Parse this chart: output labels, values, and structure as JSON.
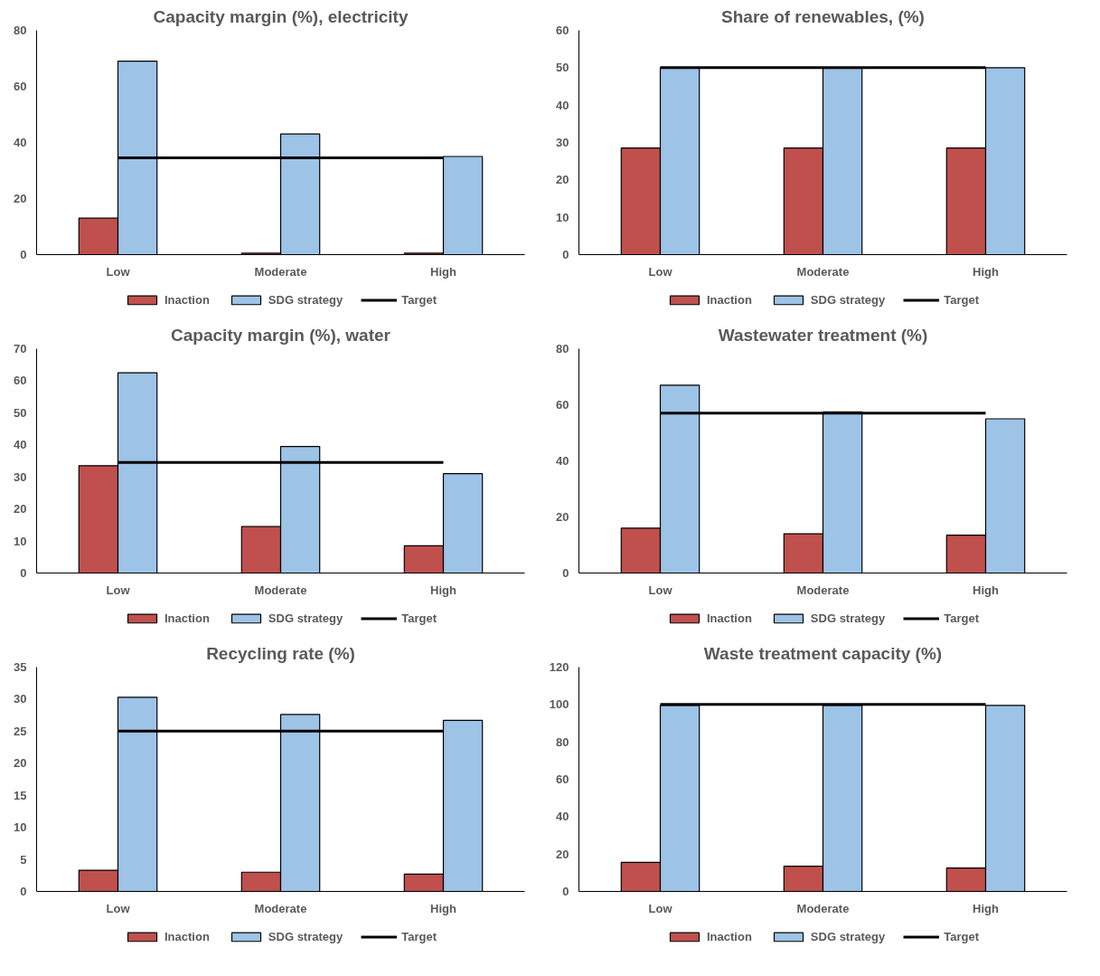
{
  "chart_data": [
    {
      "type": "bar",
      "title": "Capacity margin (%), electricity",
      "categories": [
        "Low",
        "Moderate",
        "High"
      ],
      "ylim": [
        0,
        80
      ],
      "yticks": [
        0,
        20,
        40,
        60,
        80
      ],
      "grid": false,
      "legend": "bottom",
      "series": [
        {
          "name": "Inaction",
          "color": "#c0504d",
          "values": [
            13,
            0.5,
            0.5
          ]
        },
        {
          "name": "SDG strategy",
          "color": "#9dc3e6",
          "values": [
            69,
            43,
            35
          ]
        },
        {
          "name": "Target",
          "type": "line",
          "color": "#000000",
          "values": [
            34.5,
            34.5,
            34.5
          ]
        }
      ]
    },
    {
      "type": "bar",
      "title": "Share of renewables, (%)",
      "categories": [
        "Low",
        "Moderate",
        "High"
      ],
      "ylim": [
        0,
        60
      ],
      "yticks": [
        0,
        10,
        20,
        30,
        40,
        50,
        60
      ],
      "grid": false,
      "legend": "bottom",
      "series": [
        {
          "name": "Inaction",
          "color": "#c0504d",
          "values": [
            28.5,
            28.5,
            28.5
          ]
        },
        {
          "name": "SDG strategy",
          "color": "#9dc3e6",
          "values": [
            50,
            50,
            50
          ]
        },
        {
          "name": "Target",
          "type": "line",
          "color": "#000000",
          "values": [
            50,
            50,
            50
          ]
        }
      ]
    },
    {
      "type": "bar",
      "title": "Capacity margin (%), water",
      "categories": [
        "Low",
        "Moderate",
        "High"
      ],
      "ylim": [
        0,
        70
      ],
      "yticks": [
        0,
        10,
        20,
        30,
        40,
        50,
        60,
        70
      ],
      "grid": false,
      "legend": "bottom",
      "series": [
        {
          "name": "Inaction",
          "color": "#c0504d",
          "values": [
            33.5,
            14.5,
            8.5
          ]
        },
        {
          "name": "SDG strategy",
          "color": "#9dc3e6",
          "values": [
            62.5,
            39.5,
            31
          ]
        },
        {
          "name": "Target",
          "type": "line",
          "color": "#000000",
          "values": [
            34.5,
            34.5,
            34.5
          ]
        }
      ]
    },
    {
      "type": "bar",
      "title": "Wastewater treatment (%)",
      "categories": [
        "Low",
        "Moderate",
        "High"
      ],
      "ylim": [
        0,
        80
      ],
      "yticks": [
        0,
        20,
        40,
        60,
        80
      ],
      "grid": false,
      "legend": "bottom",
      "series": [
        {
          "name": "Inaction",
          "color": "#c0504d",
          "values": [
            16,
            14,
            13.5
          ]
        },
        {
          "name": "SDG strategy",
          "color": "#9dc3e6",
          "values": [
            67,
            57.5,
            55
          ]
        },
        {
          "name": "Target",
          "type": "line",
          "color": "#000000",
          "values": [
            57,
            57,
            57
          ]
        }
      ]
    },
    {
      "type": "bar",
      "title": "Recycling rate (%)",
      "categories": [
        "Low",
        "Moderate",
        "High"
      ],
      "ylim": [
        0,
        35
      ],
      "yticks": [
        0,
        5,
        10,
        15,
        20,
        25,
        30,
        35
      ],
      "grid": false,
      "legend": "bottom",
      "series": [
        {
          "name": "Inaction",
          "color": "#c0504d",
          "values": [
            3.3,
            3,
            2.7
          ]
        },
        {
          "name": "SDG strategy",
          "color": "#9dc3e6",
          "values": [
            30.3,
            27.6,
            26.7
          ]
        },
        {
          "name": "Target",
          "type": "line",
          "color": "#000000",
          "values": [
            25,
            25,
            25
          ]
        }
      ]
    },
    {
      "type": "bar",
      "title": "Waste treatment capacity (%)",
      "categories": [
        "Low",
        "Moderate",
        "High"
      ],
      "ylim": [
        0,
        120
      ],
      "yticks": [
        0,
        20,
        40,
        60,
        80,
        100,
        120
      ],
      "grid": false,
      "legend": "bottom",
      "series": [
        {
          "name": "Inaction",
          "color": "#c0504d",
          "values": [
            15.5,
            13.5,
            12.5
          ]
        },
        {
          "name": "SDG strategy",
          "color": "#9dc3e6",
          "values": [
            99.5,
            99.5,
            99.5
          ]
        },
        {
          "name": "Target",
          "type": "line",
          "color": "#000000",
          "values": [
            100,
            100,
            100
          ]
        }
      ]
    }
  ]
}
